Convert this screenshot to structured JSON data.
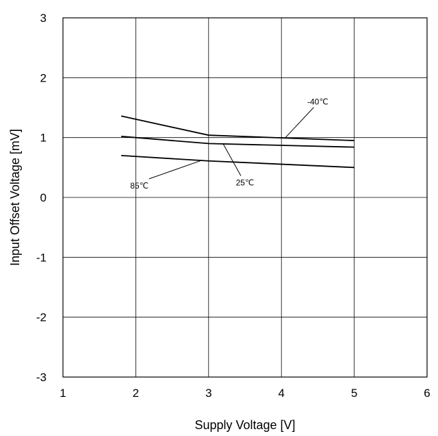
{
  "chart_data": {
    "type": "line",
    "title": "",
    "xlabel": "Supply Voltage [V]",
    "ylabel": "Input Offset Voltage [mV]",
    "xlim": [
      1,
      6
    ],
    "ylim": [
      -3,
      3
    ],
    "xticks": [
      "1",
      "2",
      "3",
      "4",
      "5",
      "6"
    ],
    "yticks": [
      "3",
      "2",
      "1",
      "0",
      "-1",
      "-2",
      "-3"
    ],
    "grid": true,
    "series": [
      {
        "name": "-40℃",
        "x": [
          1.8,
          3,
          5
        ],
        "y": [
          1.36,
          1.04,
          0.95
        ]
      },
      {
        "name": "25℃",
        "x": [
          1.8,
          3,
          5
        ],
        "y": [
          1.02,
          0.9,
          0.84
        ]
      },
      {
        "name": "85℃",
        "x": [
          1.8,
          3,
          5
        ],
        "y": [
          0.7,
          0.61,
          0.5
        ]
      }
    ],
    "annotations": [
      {
        "text": "-40℃",
        "series": 0,
        "point_x": 4.05,
        "label_x": 4.5,
        "label_y": 1.55
      },
      {
        "text": "25℃",
        "series": 1,
        "point_x": 3.2,
        "label_x": 3.5,
        "label_y": 0.2
      },
      {
        "text": "85℃",
        "series": 2,
        "point_x": 2.9,
        "label_x": 2.05,
        "label_y": 0.15
      }
    ]
  }
}
